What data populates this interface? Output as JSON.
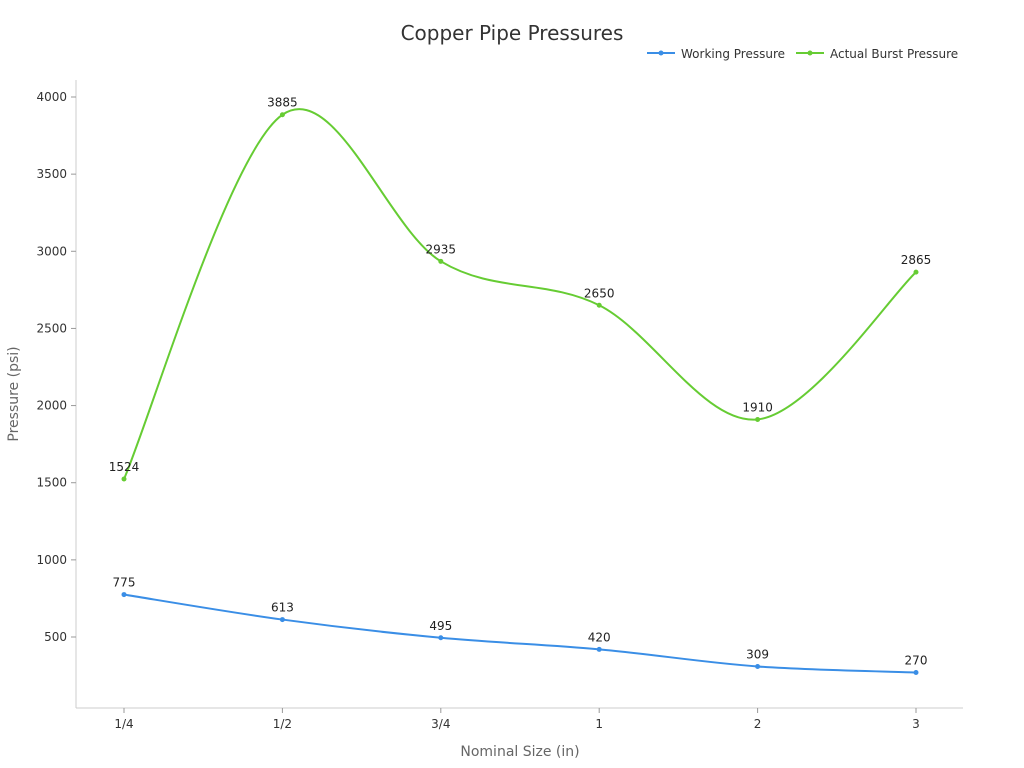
{
  "chart_data": {
    "type": "line",
    "title": "Copper Pipe Pressures",
    "xlabel": "Nominal Size (in)",
    "ylabel": "Pressure (psi)",
    "categories": [
      "1/4",
      "1/2",
      "3/4",
      "1",
      "2",
      "3"
    ],
    "yticks": [
      500,
      1000,
      1500,
      2000,
      2500,
      3000,
      3500,
      4000
    ],
    "ylim": [
      40,
      4100
    ],
    "grid": false,
    "legend_position": "top-right",
    "smooth": true,
    "series": [
      {
        "name": "Working Pressure",
        "color": "#3a8ee6",
        "values": [
          775,
          613,
          495,
          420,
          309,
          270
        ]
      },
      {
        "name": "Actual Burst Pressure",
        "color": "#66cc33",
        "values": [
          1524,
          3885,
          2935,
          2650,
          1910,
          2865
        ]
      }
    ]
  }
}
